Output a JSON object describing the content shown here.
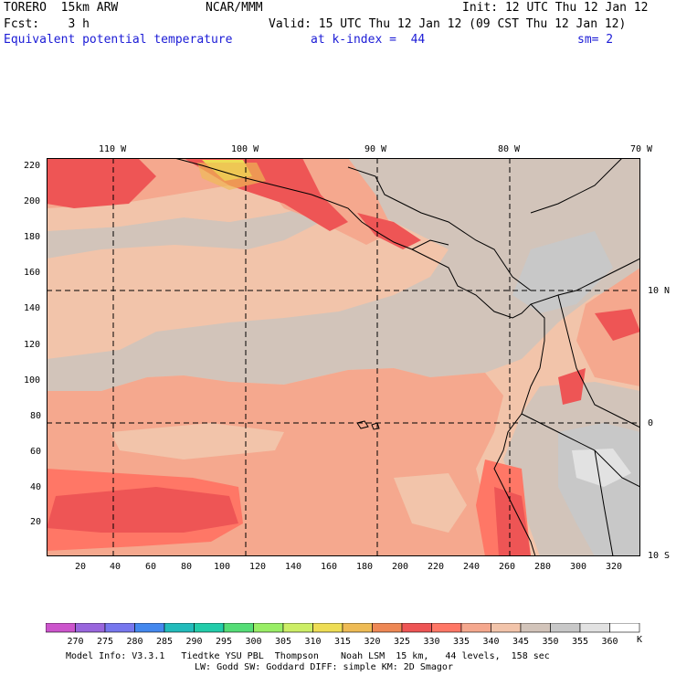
{
  "header": {
    "model": "TORERO  15km ARW",
    "center": "NCAR/MMM",
    "init": "Init: 12 UTC Thu 12 Jan 12",
    "fcst": "Fcst:    3 h",
    "valid": "Valid: 15 UTC Thu 12 Jan 12 (09 CST Thu 12 Jan 12)",
    "field": "Equivalent potential temperature",
    "level": "at k-index =  44",
    "smooth": "sm= 2"
  },
  "map": {
    "x_ticks": [
      "20",
      "40",
      "60",
      "80",
      "100",
      "120",
      "140",
      "160",
      "180",
      "200",
      "220",
      "240",
      "260",
      "280",
      "300",
      "320"
    ],
    "y_ticks": [
      "220",
      "200",
      "180",
      "160",
      "140",
      "120",
      "100",
      "80",
      "60",
      "40",
      "20"
    ],
    "lon_labels": [
      "110 W",
      "100 W",
      "90 W",
      "80 W",
      "70 W"
    ],
    "lat_labels": [
      "10 N",
      "0",
      "10 S"
    ],
    "x_range": [
      0,
      335
    ],
    "y_range": [
      0,
      222
    ]
  },
  "colorbar": {
    "labels": [
      "270",
      "275",
      "280",
      "285",
      "290",
      "295",
      "300",
      "305",
      "310",
      "315",
      "320",
      "325",
      "330",
      "335",
      "340",
      "345",
      "350",
      "355",
      "360"
    ],
    "unit": "K",
    "colors": [
      "#cc55cc",
      "#9966dd",
      "#7777ee",
      "#4488ee",
      "#22bbbb",
      "#22ccaa",
      "#55dd77",
      "#99ee66",
      "#ccee66",
      "#eedd55",
      "#eebb55",
      "#ee8855",
      "#ee5555",
      "#ff7766",
      "#f5a88e",
      "#f2c4aa",
      "#d2c4ba",
      "#c8c8c8",
      "#e2e2e2",
      "#ffffff"
    ]
  },
  "footer": {
    "line1": "Model Info: V3.3.1   Tiedtke YSU PBL  Thompson    Noah LSM  15 km,   44 levels,  158 sec",
    "line2": "LW: Godd SW: Goddard DIFF: simple KM: 2D Smagor"
  }
}
